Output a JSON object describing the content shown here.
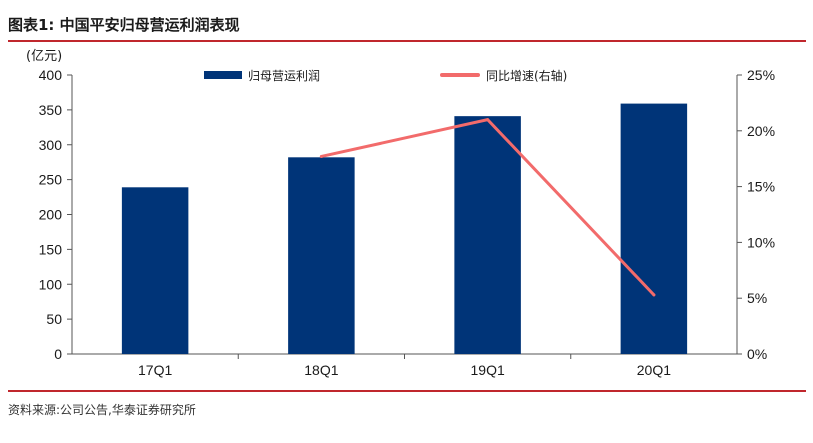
{
  "title": "图表1:  中国平安归母营运利润表现",
  "source": "资料来源:公司公告,华泰证券研究所",
  "colors": {
    "bar": "#003478",
    "line": "#f26b6b",
    "rule": "#c0272d"
  },
  "chart_data": {
    "type": "bar",
    "categories": [
      "17Q1",
      "18Q1",
      "19Q1",
      "20Q1"
    ],
    "y_unit_label": "(亿元)",
    "ylim": [
      0,
      400
    ],
    "y_ticks": [
      "0",
      "50",
      "100",
      "150",
      "200",
      "250",
      "300",
      "350",
      "400"
    ],
    "y2lim": [
      0,
      25
    ],
    "y2_ticks": [
      "0%",
      "5%",
      "10%",
      "15%",
      "20%",
      "25%"
    ],
    "series": [
      {
        "name": "归母营运利润",
        "type": "bar",
        "axis": "left",
        "values": [
          239,
          282,
          341,
          359
        ]
      },
      {
        "name": "同比增速(右轴)",
        "type": "line",
        "axis": "right",
        "values": [
          null,
          17.7,
          21.0,
          5.3
        ]
      }
    ],
    "grid": false,
    "legend": "top"
  }
}
